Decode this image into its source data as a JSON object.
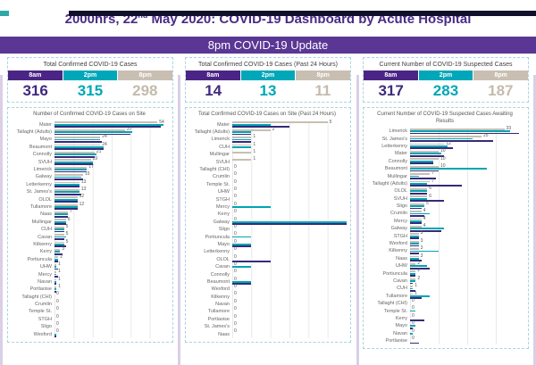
{
  "top": {
    "title_parts": [
      "2000hrs, 22",
      "nd",
      " May 2020: COVID-19 Dashboard by Acute Hospital"
    ]
  },
  "banner": {
    "label": "8pm COVID-19 Update"
  },
  "times": [
    "8am",
    "2pm",
    "8pm"
  ],
  "colors": {
    "title_purple": "#4a2b87",
    "banner_purple": "#5a3794",
    "col_8am": "#4b2585",
    "col_2pm": "#00a7b8",
    "col_8pm": "#c8bfb2",
    "bar_8am": "#352a7c",
    "bar_2pm": "#00a4b4",
    "bar_8pm": "#c8bfb2"
  },
  "panels": [
    {
      "summary_title": "Total Confirmed COVID-19 Cases",
      "totals": [
        "316",
        "315",
        "298"
      ]
    },
    {
      "summary_title": "Total Confirmed COVID-19 Cases (Past 24 Hours)",
      "totals": [
        "14",
        "13",
        "11"
      ]
    },
    {
      "summary_title": "Current Number of COVID-19 Suspected Cases",
      "totals": [
        "317",
        "283",
        "187"
      ]
    }
  ],
  "chart_data": [
    {
      "type": "bar",
      "orientation": "horizontal-grouped",
      "title": "Number of Confirmed COVID-19 Cases on Site",
      "legend": [
        "8am",
        "2pm",
        "8pm"
      ],
      "legend_position": "none",
      "grid": true,
      "xlim": [
        0,
        60
      ],
      "grid_step": 10,
      "data_labels": "8pm series",
      "categories": [
        "Mater",
        "Tallaght (Adults)",
        "Mayo",
        "Beaumont",
        "Connolly",
        "SVUH",
        "Limerick",
        "Galway",
        "Letterkenny",
        "St. James's",
        "OLOL",
        "Tullamore",
        "Naas",
        "Mullingar",
        "CUH",
        "Cavan",
        "Kilkenny",
        "Kerry",
        "Portiuncula",
        "UHW",
        "Mercy",
        "Navan",
        "Portlaoise",
        "Tallaght (CHI)",
        "Crumlin",
        "Temple St.",
        "STGH",
        "Sligo",
        "Wexford"
      ],
      "series": [
        {
          "name": "8am",
          "values": [
            56,
            40,
            25,
            26,
            21,
            20,
            17,
            15,
            13,
            14,
            12,
            12,
            7,
            6,
            5,
            5,
            6,
            4,
            2,
            2,
            2,
            1,
            1,
            0,
            0,
            0,
            0,
            0,
            1
          ]
        },
        {
          "name": "2pm",
          "values": [
            57,
            41,
            24,
            26,
            22,
            20,
            17,
            14,
            13,
            13,
            12,
            12,
            7,
            6,
            5,
            6,
            5,
            3,
            2,
            1,
            1,
            1,
            1,
            0,
            0,
            0,
            0,
            0,
            1
          ]
        },
        {
          "name": "8pm",
          "values": [
            54,
            37,
            24,
            24,
            21,
            19,
            17,
            15,
            13,
            13,
            12,
            12,
            7,
            6,
            5,
            5,
            5,
            3,
            2,
            1,
            1,
            1,
            1,
            0,
            0,
            0,
            0,
            0,
            0
          ]
        }
      ]
    },
    {
      "type": "bar",
      "orientation": "horizontal-grouped",
      "title": "Total Confirmed COVID-19 Cases on Site (Past 24 Hours)",
      "legend": [
        "8am",
        "2pm",
        "8pm"
      ],
      "legend_position": "none",
      "grid": true,
      "xlim": [
        0,
        6
      ],
      "grid_step": 1,
      "data_labels": "8pm series",
      "categories": [
        "Mater",
        "Tallaght (Adults)",
        "Limerick",
        "CUH",
        "Mullingar",
        "SVUH",
        "Tallaght (CHI)",
        "Crumlin",
        "Temple St.",
        "UHW",
        "STGH",
        "Mercy",
        "Kerry",
        "Galway",
        "Sligo",
        "Portiuncula",
        "Mayo",
        "Letterkenny",
        "OLOL",
        "Cavan",
        "Connolly",
        "Beaumont",
        "Wexford",
        "Kilkenny",
        "Navan",
        "Tullamore",
        "Portlaoise",
        "St. James's",
        "Naas"
      ],
      "series": [
        {
          "name": "8am",
          "values": [
            3,
            1,
            1,
            0,
            0,
            0,
            0,
            0,
            0,
            0,
            0,
            0,
            0,
            6,
            0,
            0,
            1,
            0,
            2,
            0,
            0,
            1,
            0,
            0,
            0,
            0,
            0,
            0,
            0
          ]
        },
        {
          "name": "2pm",
          "values": [
            2,
            1,
            1,
            1,
            0,
            0,
            0,
            0,
            0,
            0,
            0,
            2,
            0,
            6,
            0,
            1,
            1,
            0,
            0,
            1,
            0,
            1,
            0,
            0,
            0,
            0,
            0,
            0,
            0
          ]
        },
        {
          "name": "8pm",
          "values": [
            5,
            2,
            1,
            1,
            1,
            1,
            0,
            0,
            0,
            0,
            0,
            0,
            0,
            0,
            0,
            0,
            0,
            0,
            0,
            0,
            0,
            0,
            0,
            0,
            0,
            0,
            0,
            0,
            0
          ]
        }
      ]
    },
    {
      "type": "bar",
      "orientation": "horizontal-grouped",
      "title": "Current Number of COVID-19 Suspected Cases Awaiting Results",
      "legend": [
        "8am",
        "2pm",
        "8pm"
      ],
      "legend_position": "none",
      "grid": true,
      "xlim": [
        0,
        40
      ],
      "grid_step": 10,
      "data_labels": "8pm series",
      "categories": [
        "Limerick",
        "St. James's",
        "Letterkenny",
        "Mater",
        "Connolly",
        "Beaumont",
        "Mullingar",
        "Tallaght (Adults)",
        "OLOL",
        "SVUH",
        "Sligo",
        "Crumlin",
        "Mercy",
        "Galway",
        "STGH",
        "Wexford",
        "Kilkenny",
        "Naas",
        "UHW",
        "Portiuncula",
        "Cavan",
        "CUH",
        "Tullamore",
        "Tallaght (CHI)",
        "Temple St.",
        "Kerry",
        "Mayo",
        "Navan",
        "Portlaoise"
      ],
      "series": [
        {
          "name": "8am",
          "values": [
            38,
            29,
            15,
            12,
            8,
            10,
            9,
            18,
            6,
            12,
            4,
            5,
            4,
            11,
            3,
            3,
            3,
            4,
            7,
            2,
            1,
            2,
            4,
            0,
            0,
            5,
            1,
            0,
            3
          ]
        },
        {
          "name": "2pm",
          "values": [
            35,
            22,
            13,
            11,
            8,
            27,
            3,
            6,
            6,
            6,
            5,
            7,
            4,
            12,
            3,
            3,
            10,
            3,
            6,
            2,
            2,
            1,
            7,
            0,
            2,
            0,
            2,
            1,
            0
          ]
        },
        {
          "name": "8pm",
          "values": [
            33,
            25,
            12,
            10,
            10,
            10,
            7,
            7,
            6,
            6,
            5,
            4,
            4,
            4,
            3,
            3,
            3,
            3,
            2,
            2,
            2,
            1,
            1,
            0,
            0,
            0,
            0,
            0,
            0
          ]
        }
      ]
    }
  ]
}
